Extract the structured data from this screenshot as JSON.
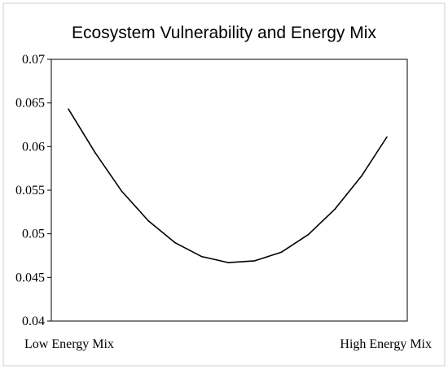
{
  "chart_data": {
    "type": "line",
    "title": "Ecosystem Vulnerability and Energy Mix",
    "xlabel": "",
    "ylabel": "",
    "x_labels": [
      "Low Energy Mix",
      "High Energy Mix"
    ],
    "ylim": [
      0.04,
      0.07
    ],
    "yticks": [
      "0.04",
      "0.045",
      "0.05",
      "0.055",
      "0.06",
      "0.065",
      "0.07"
    ],
    "grid": false,
    "legend": "none",
    "series": [
      {
        "x": [
          0.0,
          0.084,
          0.167,
          0.251,
          0.334,
          0.418,
          0.502,
          0.585,
          0.669,
          0.753,
          0.836,
          0.92,
          1.0
        ],
        "values": [
          0.0643,
          0.0593,
          0.0549,
          0.0515,
          0.049,
          0.0474,
          0.0467,
          0.0469,
          0.0479,
          0.0499,
          0.0528,
          0.0566,
          0.0611
        ],
        "color": "#000000"
      }
    ]
  }
}
